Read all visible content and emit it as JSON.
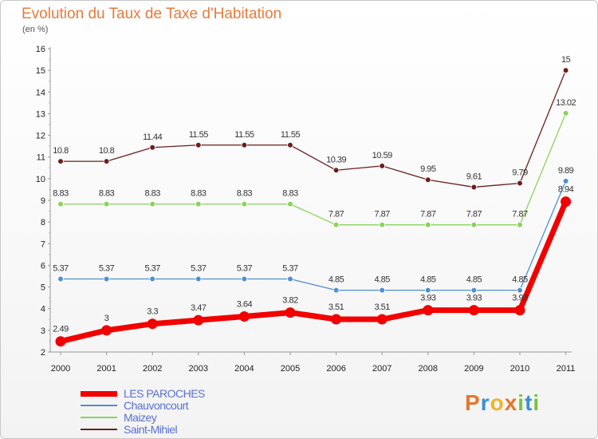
{
  "title": "Evolution du Taux de Taxe d'Habitation",
  "subtitle": "(en %)",
  "brand": "Proxiti",
  "chart_data": {
    "type": "line",
    "categories": [
      "2000",
      "2001",
      "2002",
      "2003",
      "2004",
      "2005",
      "2006",
      "2007",
      "2008",
      "2009",
      "2010",
      "2011"
    ],
    "ylim": [
      2,
      16
    ],
    "yticks": [
      2,
      3,
      4,
      5,
      6,
      7,
      8,
      9,
      10,
      11,
      12,
      13,
      14,
      15,
      16
    ],
    "grid": false,
    "legend_position": "bottom-left",
    "series": [
      {
        "name": "Saint-Mihiel",
        "color": "#6b1f1f",
        "values": [
          10.8,
          10.8,
          11.44,
          11.55,
          11.55,
          11.55,
          10.39,
          10.59,
          9.95,
          9.61,
          9.79,
          15
        ],
        "labels": [
          "10.8",
          "10.8",
          "11.44",
          "11.55",
          "11.55",
          "11.55",
          "10.39",
          "10.59",
          "9.95",
          "9.61",
          "9.79",
          "15"
        ]
      },
      {
        "name": "Maizey",
        "color": "#8ad35a",
        "values": [
          8.83,
          8.83,
          8.83,
          8.83,
          8.83,
          8.83,
          7.87,
          7.87,
          7.87,
          7.87,
          7.87,
          13.02
        ],
        "labels": [
          "8.83",
          "8.83",
          "8.83",
          "8.83",
          "8.83",
          "8.83",
          "7.87",
          "7.87",
          "7.87",
          "7.87",
          "7.87",
          "13.02"
        ]
      },
      {
        "name": "Chauvoncourt",
        "color": "#4f8fd0",
        "values": [
          5.37,
          5.37,
          5.37,
          5.37,
          5.37,
          5.37,
          4.85,
          4.85,
          4.85,
          4.85,
          4.85,
          9.89
        ],
        "labels": [
          "5.37",
          "5.37",
          "5.37",
          "5.37",
          "5.37",
          "5.37",
          "4.85",
          "4.85",
          "4.85",
          "4.85",
          "4.85",
          "9.89"
        ]
      },
      {
        "name": "LES PAROCHES",
        "color": "#f20000",
        "values": [
          2.49,
          3,
          3.3,
          3.47,
          3.64,
          3.82,
          3.51,
          3.51,
          3.93,
          3.93,
          3.93,
          8.94
        ],
        "labels": [
          "2.49",
          "3",
          "3.3",
          "3.47",
          "3.64",
          "3.82",
          "3.51",
          "3.51",
          "3.93",
          "3.93",
          "3.93",
          "8.94"
        ]
      }
    ],
    "legend": [
      "LES PAROCHES",
      "Chauvoncourt",
      "Maizey",
      "Saint-Mihiel"
    ]
  }
}
